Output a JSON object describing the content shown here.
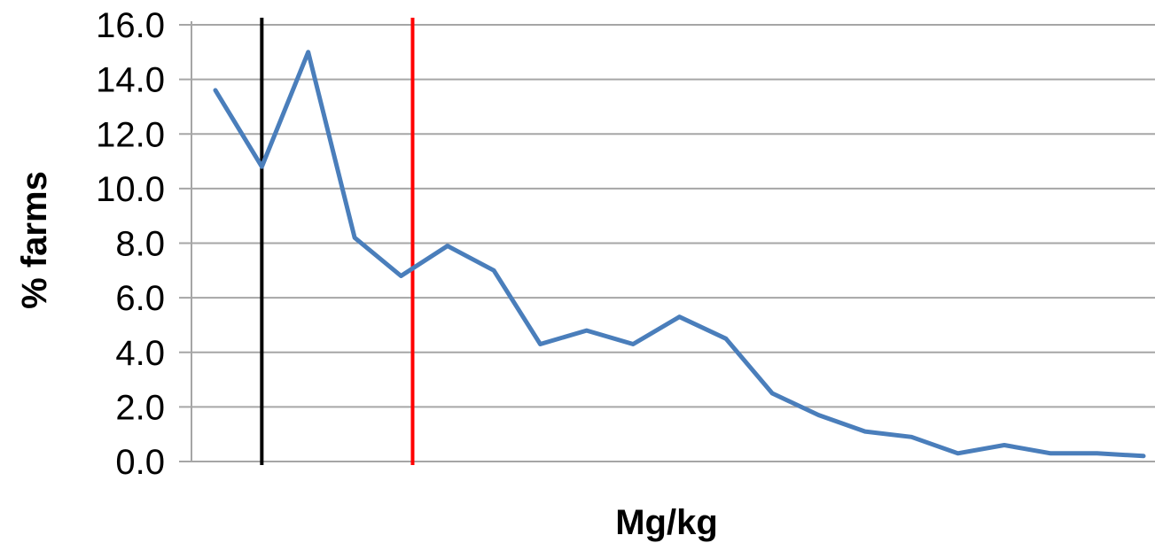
{
  "chart_data": {
    "type": "line",
    "title": "",
    "xlabel": "Mg/kg",
    "ylabel": "% farms",
    "ylim": [
      0,
      16
    ],
    "yticks": [
      "0.0",
      "2.0",
      "4.0",
      "6.0",
      "8.0",
      "10.0",
      "12.0",
      "14.0",
      "16.0"
    ],
    "grid": true,
    "legend": "none",
    "series": [
      {
        "color": "#4a7ebb",
        "values": [
          13.6,
          10.8,
          15.0,
          8.2,
          6.8,
          7.9,
          7.0,
          4.3,
          4.8,
          4.3,
          5.3,
          4.5,
          2.5,
          1.7,
          1.1,
          0.9,
          0.3,
          0.6,
          0.3,
          0.3,
          0.2
        ]
      }
    ],
    "reference_lines": [
      {
        "color": "#000000",
        "position_index": 1
      },
      {
        "color": "#ff0000",
        "position_index": 4.25
      }
    ],
    "gridline_color": "#a6a6a6"
  }
}
